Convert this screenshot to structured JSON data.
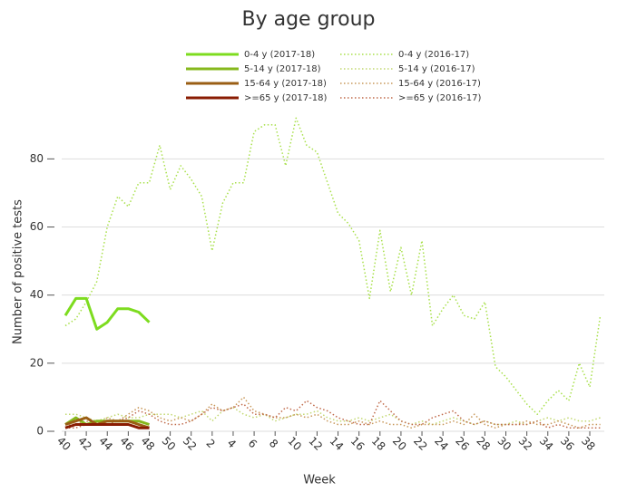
{
  "chart_data": {
    "type": "line",
    "title": "By age group",
    "x_label": "Week",
    "y_label": "Number of positive tests",
    "categories": [
      "40",
      null,
      "42",
      null,
      "44",
      null,
      "46",
      null,
      "48",
      null,
      "50",
      null,
      "52",
      null,
      "2",
      null,
      "4",
      null,
      "6",
      null,
      "8",
      null,
      "10",
      null,
      "12",
      null,
      "14",
      null,
      "16",
      null,
      "18",
      null,
      "20",
      null,
      "22",
      null,
      "24",
      null,
      "26",
      null,
      "28",
      null,
      "30",
      null,
      "32",
      null,
      "34",
      null,
      "36",
      null,
      "38",
      null
    ],
    "ylim": [
      0,
      95
    ],
    "yticks": [
      0,
      20,
      40,
      60,
      80
    ],
    "grid": true,
    "series": [
      {
        "name": "0-4 y (2017-18)",
        "color": "#7ddc1f",
        "style": "solid",
        "values": [
          34,
          39,
          39,
          30,
          32,
          36,
          36,
          35,
          32,
          null,
          null,
          null,
          null,
          null,
          null,
          null,
          null,
          null,
          null,
          null,
          null,
          null,
          null,
          null,
          null,
          null,
          null,
          null,
          null,
          null,
          null,
          null,
          null,
          null,
          null,
          null,
          null,
          null,
          null,
          null,
          null,
          null,
          null,
          null,
          null,
          null,
          null,
          null,
          null,
          null,
          null,
          null
        ]
      },
      {
        "name": "5-14 y (2017-18)",
        "color": "#86b81c",
        "style": "solid",
        "values": [
          2,
          4,
          2,
          3,
          3,
          3,
          3,
          3,
          2,
          null,
          null,
          null,
          null,
          null,
          null,
          null,
          null,
          null,
          null,
          null,
          null,
          null,
          null,
          null,
          null,
          null,
          null,
          null,
          null,
          null,
          null,
          null,
          null,
          null,
          null,
          null,
          null,
          null,
          null,
          null,
          null,
          null,
          null,
          null,
          null,
          null,
          null,
          null,
          null,
          null,
          null,
          null
        ]
      },
      {
        "name": "15-64 y (2017-18)",
        "color": "#9a5e14",
        "style": "solid",
        "values": [
          2,
          3,
          4,
          2,
          3,
          3,
          3,
          2,
          1,
          null,
          null,
          null,
          null,
          null,
          null,
          null,
          null,
          null,
          null,
          null,
          null,
          null,
          null,
          null,
          null,
          null,
          null,
          null,
          null,
          null,
          null,
          null,
          null,
          null,
          null,
          null,
          null,
          null,
          null,
          null,
          null,
          null,
          null,
          null,
          null,
          null,
          null,
          null,
          null,
          null,
          null,
          null
        ]
      },
      {
        "name": ">=65 y (2017-18)",
        "color": "#8a1c02",
        "style": "solid",
        "values": [
          1,
          2,
          2,
          2,
          2,
          2,
          2,
          1,
          1,
          null,
          null,
          null,
          null,
          null,
          null,
          null,
          null,
          null,
          null,
          null,
          null,
          null,
          null,
          null,
          null,
          null,
          null,
          null,
          null,
          null,
          null,
          null,
          null,
          null,
          null,
          null,
          null,
          null,
          null,
          null,
          null,
          null,
          null,
          null,
          null,
          null,
          null,
          null,
          null,
          null,
          null,
          null
        ]
      },
      {
        "name": "0-4 y (2016-17)",
        "color": "#a8e04a",
        "style": "dotted",
        "values": [
          31,
          33,
          38,
          44,
          60,
          69,
          66,
          73,
          73,
          84,
          71,
          78,
          74,
          69,
          53,
          67,
          73,
          73,
          88,
          90,
          90,
          78,
          92,
          84,
          82,
          73,
          64,
          61,
          56,
          39,
          59,
          41,
          54,
          40,
          56,
          31,
          36,
          40,
          34,
          33,
          38,
          19,
          16,
          12,
          8,
          5,
          9,
          12,
          9,
          20,
          13,
          34
        ]
      },
      {
        "name": "5-14 y (2016-17)",
        "color": "#c2d870",
        "style": "dotted",
        "values": [
          5,
          5,
          4,
          3,
          4,
          5,
          4,
          4,
          5,
          5,
          5,
          4,
          5,
          6,
          3,
          6,
          7,
          5,
          4,
          5,
          3,
          4,
          5,
          5,
          6,
          4,
          3,
          3,
          4,
          3,
          4,
          5,
          3,
          2,
          3,
          2,
          3,
          4,
          3,
          2,
          3,
          2,
          2,
          3,
          2,
          3,
          4,
          3,
          4,
          3,
          3,
          4
        ]
      },
      {
        "name": "15-64 y (2016-17)",
        "color": "#c8985a",
        "style": "dotted",
        "values": [
          2,
          2,
          3,
          2,
          4,
          3,
          5,
          7,
          6,
          4,
          3,
          4,
          3,
          5,
          8,
          6,
          7,
          10,
          6,
          5,
          4,
          4,
          5,
          4,
          5,
          3,
          2,
          2,
          3,
          2,
          3,
          2,
          2,
          1,
          2,
          2,
          2,
          3,
          2,
          5,
          2,
          1,
          2,
          2,
          3,
          2,
          2,
          3,
          2,
          1,
          2,
          2
        ]
      },
      {
        "name": ">=65 y (2016-17)",
        "color": "#c06a4a",
        "style": "dotted",
        "values": [
          1,
          1,
          2,
          2,
          2,
          3,
          4,
          6,
          5,
          3,
          2,
          2,
          3,
          5,
          7,
          6,
          7,
          8,
          5,
          5,
          4,
          7,
          6,
          9,
          7,
          6,
          4,
          3,
          2,
          2,
          9,
          6,
          3,
          2,
          2,
          4,
          5,
          6,
          3,
          2,
          3,
          2,
          2,
          2,
          2,
          3,
          1,
          2,
          1,
          1,
          1,
          1
        ]
      }
    ]
  }
}
